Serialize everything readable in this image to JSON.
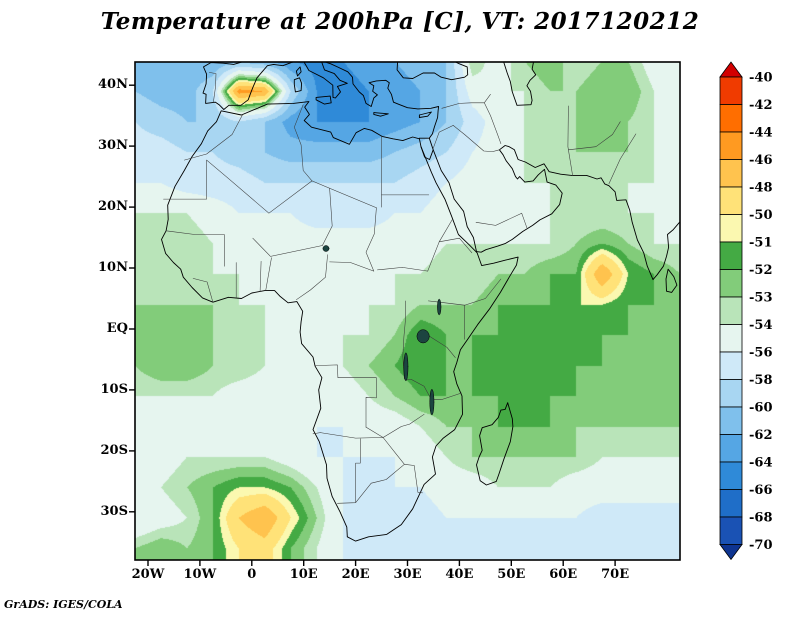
{
  "figure": {
    "credit": "GrADS: IGES/COLA"
  },
  "chart_data": {
    "type": "heatmap",
    "title": "Temperature at 200hPa [C], VT: 2017120212",
    "variable": "Temperature",
    "level": "200hPa",
    "units": "C",
    "valid_time": "2017120212",
    "legend_position": "right",
    "x_ticks": [
      {
        "label": "20W",
        "lon": -20
      },
      {
        "label": "10W",
        "lon": -10
      },
      {
        "label": "0",
        "lon": 0
      },
      {
        "label": "10E",
        "lon": 10
      },
      {
        "label": "20E",
        "lon": 20
      },
      {
        "label": "30E",
        "lon": 30
      },
      {
        "label": "40E",
        "lon": 40
      },
      {
        "label": "50E",
        "lon": 50
      },
      {
        "label": "60E",
        "lon": 60
      },
      {
        "label": "70E",
        "lon": 70
      }
    ],
    "y_ticks": [
      {
        "label": "40N",
        "lat": 40
      },
      {
        "label": "30N",
        "lat": 30
      },
      {
        "label": "20N",
        "lat": 20
      },
      {
        "label": "10N",
        "lat": 10
      },
      {
        "label": "EQ",
        "lat": 0
      },
      {
        "label": "10S",
        "lat": -10
      },
      {
        "label": "20S",
        "lat": -20
      },
      {
        "label": "30S",
        "lat": -30
      }
    ],
    "lon_range": [
      -22.5,
      82.5
    ],
    "lat_range": [
      43.8,
      -37.9
    ],
    "colorbar": {
      "levels": [
        -40,
        -42,
        -44,
        -46,
        -48,
        -50,
        -51,
        -52,
        -53,
        -54,
        -56,
        -58,
        -60,
        -62,
        -64,
        -66,
        -68,
        -70
      ],
      "box_colors": [
        "#f03b00",
        "#ff6e00",
        "#ff9a21",
        "#ffc34e",
        "#ffe278",
        "#fbf8b0",
        "#44aa44",
        "#82cc7a",
        "#b9e4b9",
        "#e6f5ef",
        "#cfe9f8",
        "#a8d6f2",
        "#7fc0ec",
        "#55a6e4",
        "#2f8ad8",
        "#1f6ec8",
        "#1a52b4"
      ],
      "arrow_top_color": "#d20000",
      "arrow_bottom_color": "#0e3490"
    },
    "grid": {
      "lons": [
        -22.5,
        -17.5,
        -12.5,
        -7.5,
        -2.5,
        2.5,
        7.5,
        12.5,
        17.5,
        22.5,
        27.5,
        32.5,
        37.5,
        42.5,
        47.5,
        52.5,
        57.5,
        62.5,
        67.5,
        72.5,
        77.5,
        82.5
      ],
      "lats": [
        44,
        39,
        34,
        29,
        24,
        19,
        14,
        9,
        4,
        -1,
        -6,
        -11,
        -16,
        -21,
        -26,
        -31,
        -36
      ],
      "values": [
        [
          -61,
          -62,
          -62,
          -62,
          -61,
          -62,
          -64,
          -65,
          -64,
          -63,
          -62,
          -61,
          -60,
          -53,
          -55,
          -53,
          -52,
          -54,
          -53,
          -53,
          -55,
          -56
        ],
        [
          -60,
          -61,
          -61,
          -58,
          -45,
          -46,
          -58,
          -64,
          -65,
          -64,
          -63,
          -62,
          -60,
          -55,
          -54,
          -54,
          -53,
          -53,
          -52,
          -52,
          -54,
          -55
        ],
        [
          -58,
          -59,
          -60,
          -60,
          -58,
          -60,
          -63,
          -64,
          -64,
          -64,
          -63,
          -62,
          -60,
          -57,
          -55,
          -54,
          -53,
          -53,
          -52,
          -53,
          -54,
          -54
        ],
        [
          -57,
          -57,
          -58,
          -58,
          -59,
          -60,
          -61,
          -61,
          -61,
          -61,
          -60,
          -59,
          -58,
          -56,
          -55,
          -54,
          -53,
          -53,
          -53,
          -53,
          -54,
          -54
        ],
        [
          -56,
          -56,
          -57,
          -57,
          -57,
          -58,
          -58,
          -58,
          -58,
          -58,
          -58,
          -57,
          -56,
          -55,
          -54,
          -54,
          -54,
          -53,
          -53,
          -54,
          -54,
          -54
        ],
        [
          -54,
          -54,
          -54,
          -55,
          -56,
          -56,
          -56,
          -57,
          -57,
          -57,
          -56,
          -56,
          -55,
          -55,
          -54,
          -54,
          -54,
          -54,
          -54,
          -54,
          -54,
          -54
        ],
        [
          -53,
          -53,
          -53,
          -54,
          -55,
          -55,
          -55,
          -55,
          -55,
          -55,
          -55,
          -55,
          -54,
          -54,
          -54,
          -54,
          -54,
          -53,
          -52,
          -53,
          -54,
          -54
        ],
        [
          -54,
          -53,
          -54,
          -54,
          -54,
          -55,
          -55,
          -55,
          -55,
          -54,
          -54,
          -54,
          -53,
          -54,
          -53,
          -53,
          -52,
          -52,
          -46,
          -51,
          -52,
          -53
        ],
        [
          -53,
          -53,
          -53,
          -53,
          -54,
          -54,
          -54,
          -55,
          -55,
          -54,
          -54,
          -53,
          -53,
          -53,
          -52,
          -52,
          -52,
          -51,
          -51,
          -52,
          -52,
          -52
        ],
        [
          -52,
          -52,
          -52,
          -53,
          -53,
          -54,
          -54,
          -55,
          -54,
          -54,
          -53,
          -51,
          -52,
          -52,
          -52,
          -51,
          -51,
          -51,
          -52,
          -52,
          -52,
          -52
        ],
        [
          -53,
          -52,
          -52,
          -53,
          -53,
          -54,
          -55,
          -55,
          -54,
          -53,
          -52,
          -51,
          -52,
          -52,
          -51,
          -51,
          -51,
          -52,
          -52,
          -52,
          -52,
          -52
        ],
        [
          -54,
          -54,
          -54,
          -54,
          -55,
          -55,
          -55,
          -55,
          -55,
          -54,
          -53,
          -52,
          -52,
          -52,
          -52,
          -51,
          -52,
          -52,
          -52,
          -52,
          -52,
          -53
        ],
        [
          -55,
          -55,
          -55,
          -55,
          -55,
          -56,
          -56,
          -56,
          -56,
          -55,
          -55,
          -54,
          -53,
          -53,
          -52,
          -52,
          -52,
          -53,
          -53,
          -53,
          -53,
          -53
        ],
        [
          -55,
          -55,
          -54,
          -54,
          -54,
          -54,
          -55,
          -56,
          -56,
          -56,
          -56,
          -55,
          -54,
          -53,
          -53,
          -53,
          -53,
          -53,
          -54,
          -54,
          -54,
          -54
        ],
        [
          -55,
          -54,
          -53,
          -52,
          -51,
          -51,
          -52,
          -54,
          -56,
          -56,
          -56,
          -56,
          -55,
          -55,
          -54,
          -54,
          -54,
          -55,
          -55,
          -55,
          -55,
          -55
        ],
        [
          -56,
          -55,
          -54,
          -52,
          -48,
          -46,
          -50,
          -53,
          -56,
          -57,
          -57,
          -57,
          -56,
          -56,
          -56,
          -56,
          -56,
          -56,
          -57,
          -57,
          -57,
          -57
        ],
        [
          -53,
          -52,
          -53,
          -52,
          -50,
          -49,
          -52,
          -54,
          -56,
          -57,
          -58,
          -58,
          -57,
          -57,
          -56,
          -57,
          -57,
          -57,
          -58,
          -58,
          -58,
          -58
        ]
      ]
    }
  }
}
